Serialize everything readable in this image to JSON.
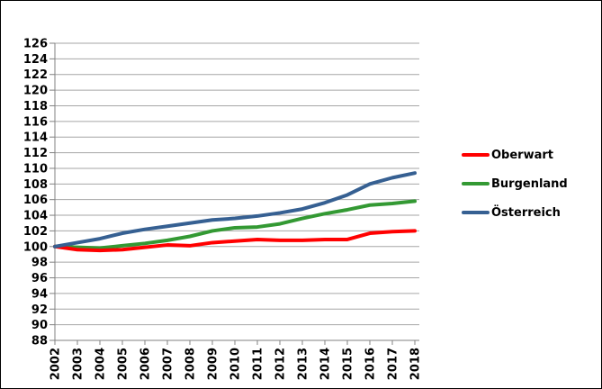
{
  "chart_data": {
    "type": "line",
    "title": "",
    "xlabel": "",
    "ylabel": "",
    "x": [
      "2002",
      "2003",
      "2004",
      "2005",
      "2006",
      "2007",
      "2008",
      "2009",
      "2010",
      "2011",
      "2012",
      "2013",
      "2014",
      "2015",
      "2016",
      "2017",
      "2018"
    ],
    "ylim": [
      88,
      126
    ],
    "ytick_step": 2,
    "grid": "horizontal",
    "legend_position": "right",
    "grid_color": "#a6a6a6",
    "axis_color": "#808080",
    "label_color": "#000000",
    "series": [
      {
        "name": "Oberwart",
        "color": "#ff0000",
        "values": [
          100,
          99.6,
          99.5,
          99.6,
          99.9,
          100.2,
          100.1,
          100.5,
          100.7,
          100.9,
          100.8,
          100.8,
          100.9,
          100.9,
          101.7,
          101.9,
          102.0
        ]
      },
      {
        "name": "Burgenland",
        "color": "#339933",
        "values": [
          100,
          99.9,
          99.8,
          100.1,
          100.4,
          100.8,
          101.3,
          102.0,
          102.4,
          102.5,
          102.9,
          103.6,
          104.2,
          104.7,
          105.3,
          105.5,
          105.8
        ]
      },
      {
        "name": "Österreich",
        "color": "#366092",
        "values": [
          100,
          100.5,
          101.0,
          101.7,
          102.2,
          102.6,
          103.0,
          103.4,
          103.6,
          103.9,
          104.3,
          104.8,
          105.6,
          106.6,
          108.0,
          108.8,
          109.4
        ]
      }
    ]
  }
}
